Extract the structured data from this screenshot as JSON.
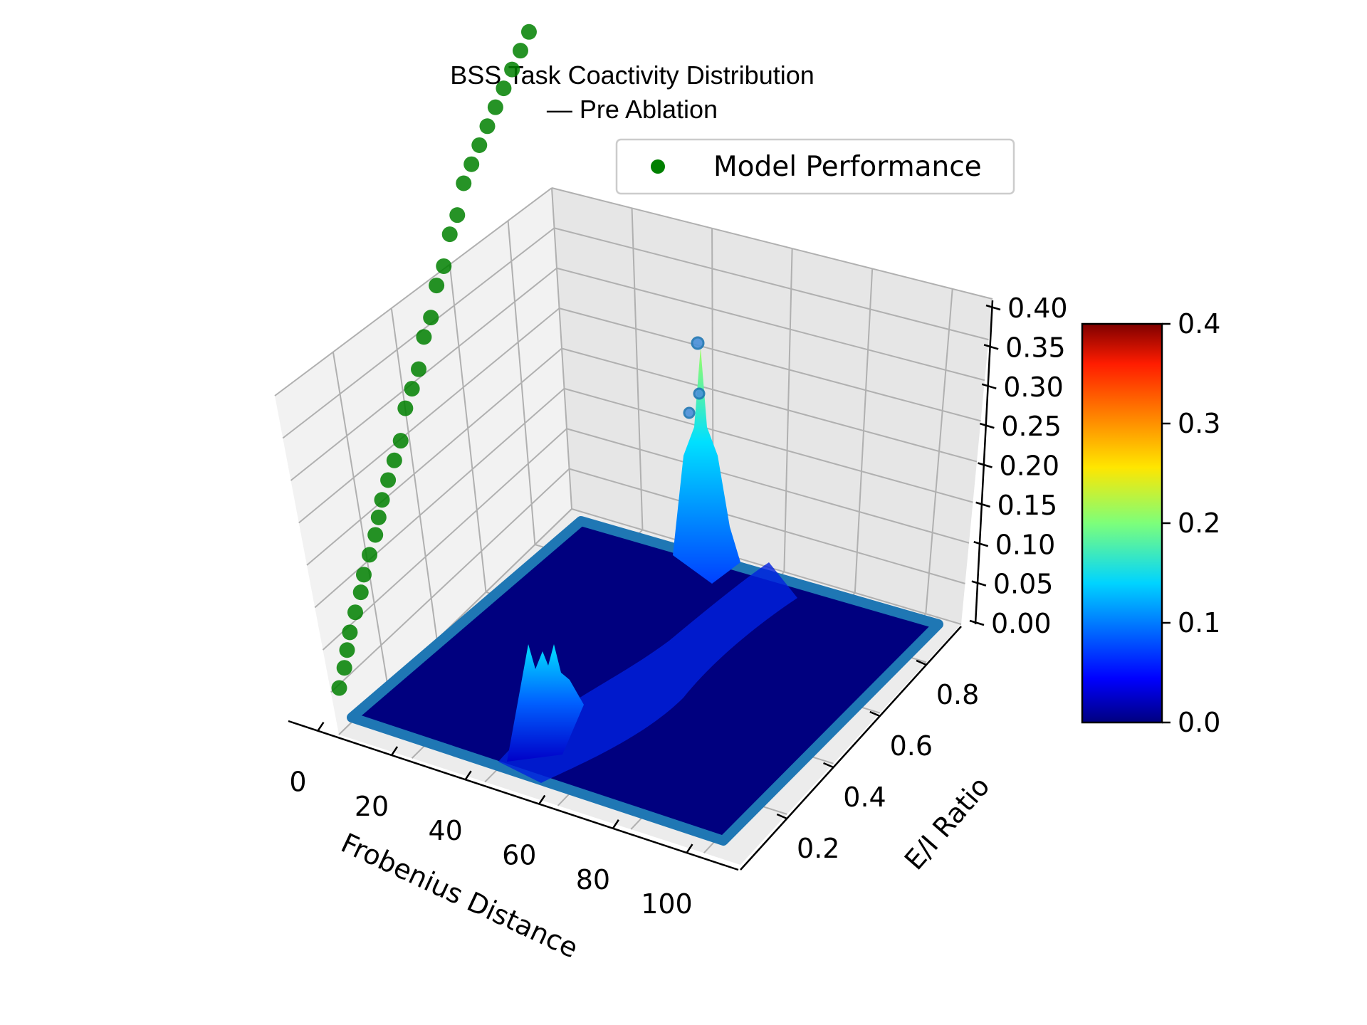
{
  "chart_data": {
    "type": "surface3d",
    "title": "BSS Task Coactivity Distribution",
    "subtitle": "— Pre Ablation",
    "xlabel": "Frobenius Distance",
    "ylabel": "E/I Ratio",
    "zlabel": "",
    "xlim": [
      0,
      110
    ],
    "ylim": [
      0.0,
      0.95
    ],
    "zlim": [
      0.0,
      0.4
    ],
    "x_ticks": [
      "0",
      "20",
      "40",
      "60",
      "80",
      "100"
    ],
    "y_ticks": [
      "0.2",
      "0.4",
      "0.6",
      "0.8"
    ],
    "z_ticks": [
      "0.00",
      "0.05",
      "0.10",
      "0.15",
      "0.20",
      "0.25",
      "0.30",
      "0.35",
      "0.40"
    ],
    "colorbar": {
      "colormap": "jet",
      "range": [
        0.0,
        0.4
      ],
      "ticks": [
        "0.0",
        "0.1",
        "0.2",
        "0.3",
        "0.4"
      ]
    },
    "legend": {
      "position": "top-right",
      "entries": [
        {
          "label": "Model Performance",
          "color": "#008000"
        }
      ]
    },
    "grid": true,
    "surface_peaks": [
      {
        "x": 50,
        "y": 0.2,
        "z": 0.16,
        "note_free": true
      },
      {
        "x": 62,
        "y": 0.75,
        "z": 0.35
      }
    ],
    "series": [
      {
        "name": "Model Performance",
        "type": "scatter3d",
        "color": "#008000",
        "x_fixed": 0,
        "y": [
          0.05,
          0.08,
          0.1,
          0.12,
          0.15,
          0.18,
          0.2,
          0.23,
          0.26,
          0.28,
          0.3,
          0.33,
          0.36,
          0.39,
          0.42,
          0.45,
          0.48,
          0.51,
          0.54,
          0.57,
          0.6,
          0.63,
          0.66,
          0.69,
          0.72,
          0.75,
          0.78,
          0.81,
          0.84,
          0.87,
          0.9,
          0.93
        ],
        "z": [
          0.02,
          0.03,
          0.04,
          0.05,
          0.06,
          0.07,
          0.08,
          0.09,
          0.1,
          0.11,
          0.12,
          0.13,
          0.14,
          0.15,
          0.17,
          0.18,
          0.19,
          0.21,
          0.22,
          0.24,
          0.25,
          0.27,
          0.28,
          0.3,
          0.31,
          0.32,
          0.33,
          0.34,
          0.35,
          0.36,
          0.37,
          0.38
        ]
      }
    ]
  }
}
